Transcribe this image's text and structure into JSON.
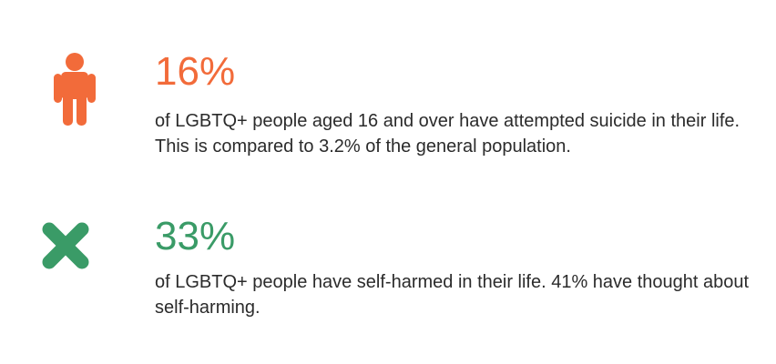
{
  "stats": [
    {
      "value": "16%",
      "text": "of LGBTQ+ people aged 16 and over have attempted suicide in their life. This is compared to 3.2% of the general population.",
      "icon": "person-icon",
      "color": "#f26b3a"
    },
    {
      "value": "33%",
      "text": "of LGBTQ+ people have self-harmed in their life. 41% have thought about self-harming.",
      "icon": "cross-icon",
      "color": "#3a9b67"
    }
  ]
}
